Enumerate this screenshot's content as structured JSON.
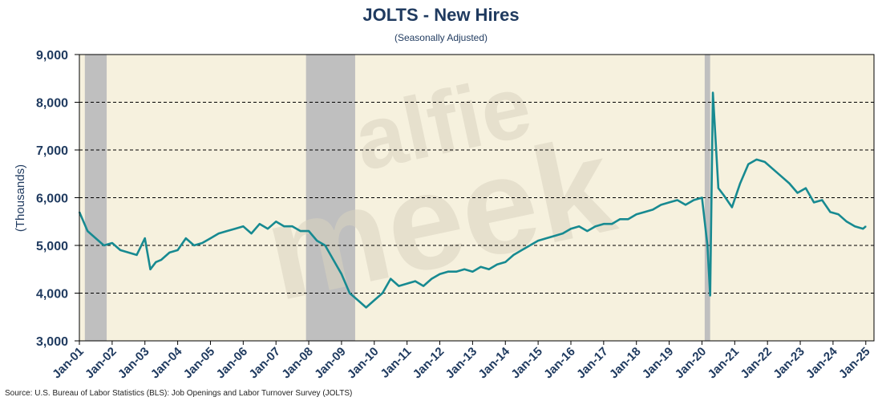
{
  "chart_data": {
    "type": "line",
    "title": "JOLTS - New Hires",
    "subtitle": "(Seasonally Adjusted)",
    "xlabel": "",
    "ylabel": "(Thousands)",
    "ylim": [
      3000,
      9000
    ],
    "yticks": [
      3000,
      4000,
      5000,
      6000,
      7000,
      8000,
      9000
    ],
    "ytick_labels": [
      "3,000",
      "4,000",
      "5,000",
      "6,000",
      "7,000",
      "8,000",
      "9,000"
    ],
    "xticks": [
      "Jan-01",
      "Jan-02",
      "Jan-03",
      "Jan-04",
      "Jan-05",
      "Jan-06",
      "Jan-07",
      "Jan-08",
      "Jan-09",
      "Jan-10",
      "Jan-11",
      "Jan-12",
      "Jan-13",
      "Jan-14",
      "Jan-15",
      "Jan-16",
      "Jan-17",
      "Jan-18",
      "Jan-19",
      "Jan-20",
      "Jan-21",
      "Jan-22",
      "Jan-23",
      "Jan-24",
      "Jan-25"
    ],
    "grid": "horizontal dashed",
    "recessions": [
      {
        "start": "2001-03",
        "end": "2001-11"
      },
      {
        "start": "2007-12",
        "end": "2009-06"
      },
      {
        "start": "2020-02",
        "end": "2020-04"
      }
    ],
    "series": [
      {
        "color": "#178a91",
        "x": [
          "2001-01",
          "2001-04",
          "2001-07",
          "2001-10",
          "2002-01",
          "2002-04",
          "2002-07",
          "2002-10",
          "2003-01",
          "2003-03",
          "2003-05",
          "2003-07",
          "2003-10",
          "2004-01",
          "2004-04",
          "2004-07",
          "2004-10",
          "2005-01",
          "2005-04",
          "2005-07",
          "2005-10",
          "2006-01",
          "2006-04",
          "2006-07",
          "2006-10",
          "2007-01",
          "2007-04",
          "2007-07",
          "2007-10",
          "2008-01",
          "2008-04",
          "2008-07",
          "2008-10",
          "2009-01",
          "2009-04",
          "2009-07",
          "2009-10",
          "2010-01",
          "2010-04",
          "2010-07",
          "2010-10",
          "2011-01",
          "2011-04",
          "2011-07",
          "2011-10",
          "2012-01",
          "2012-04",
          "2012-07",
          "2012-10",
          "2013-01",
          "2013-04",
          "2013-07",
          "2013-10",
          "2014-01",
          "2014-04",
          "2014-07",
          "2014-10",
          "2015-01",
          "2015-04",
          "2015-07",
          "2015-10",
          "2016-01",
          "2016-04",
          "2016-07",
          "2016-10",
          "2017-01",
          "2017-04",
          "2017-07",
          "2017-10",
          "2018-01",
          "2018-04",
          "2018-07",
          "2018-10",
          "2019-01",
          "2019-04",
          "2019-07",
          "2019-10",
          "2020-01",
          "2020-03",
          "2020-04",
          "2020-05",
          "2020-06",
          "2020-07",
          "2020-09",
          "2020-12",
          "2021-03",
          "2021-06",
          "2021-09",
          "2021-12",
          "2022-03",
          "2022-06",
          "2022-09",
          "2022-12",
          "2023-03",
          "2023-06",
          "2023-09",
          "2023-12",
          "2024-03",
          "2024-06",
          "2024-09",
          "2024-12",
          "2025-01"
        ],
        "y": [
          5700,
          5300,
          5150,
          5000,
          5050,
          4900,
          4850,
          4800,
          5150,
          4500,
          4650,
          4700,
          4850,
          4900,
          5150,
          5000,
          5050,
          5150,
          5250,
          5300,
          5350,
          5400,
          5250,
          5450,
          5350,
          5500,
          5400,
          5400,
          5300,
          5300,
          5100,
          5000,
          4700,
          4400,
          4000,
          3850,
          3700,
          3850,
          4000,
          4300,
          4150,
          4200,
          4250,
          4150,
          4300,
          4400,
          4450,
          4450,
          4500,
          4450,
          4550,
          4500,
          4600,
          4650,
          4800,
          4900,
          5000,
          5100,
          5150,
          5200,
          5250,
          5350,
          5400,
          5300,
          5400,
          5450,
          5450,
          5550,
          5550,
          5650,
          5700,
          5750,
          5850,
          5900,
          5950,
          5850,
          5950,
          6000,
          5000,
          3950,
          8200,
          7200,
          6200,
          6050,
          5800,
          6300,
          6700,
          6800,
          6750,
          6600,
          6450,
          6300,
          6100,
          6200,
          5900,
          5950,
          5700,
          5650,
          5500,
          5400,
          5350,
          5400
        ]
      }
    ]
  },
  "source": "Source: U.S. Bureau of Labor Statistics (BLS): Job Openings and Labor Turnover Survey (JOLTS)",
  "colors": {
    "plot_background": "#f6f1de",
    "recession_shade": "#bfbfbf",
    "line": "#178a91",
    "text": "#1f3a5f",
    "watermark": "#d9d3c0"
  },
  "watermark": "alfie meek"
}
